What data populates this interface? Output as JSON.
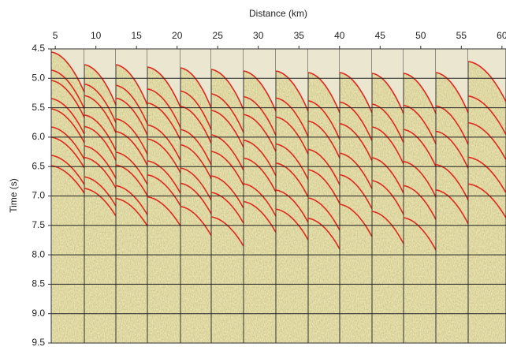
{
  "chart_data": {
    "type": "image",
    "xlabel": "Distance (km)",
    "ylabel": "Time (s)",
    "xlim": [
      4.5,
      60.5
    ],
    "xticks": [
      5,
      10,
      15,
      20,
      25,
      30,
      35,
      40,
      45,
      50,
      55,
      60
    ],
    "ylim": [
      9.5,
      4.5
    ],
    "yticks": [
      4.5,
      {
        "value": 5,
        "label": "5.0"
      },
      5.5,
      {
        "value": 6,
        "label": "6.0"
      },
      6.5,
      {
        "value": 7,
        "label": "7.0"
      },
      7.5,
      {
        "value": 8,
        "label": "8.0"
      },
      8.5,
      {
        "value": 9,
        "label": "9.0"
      },
      9.5
    ],
    "grid": true
  }
}
